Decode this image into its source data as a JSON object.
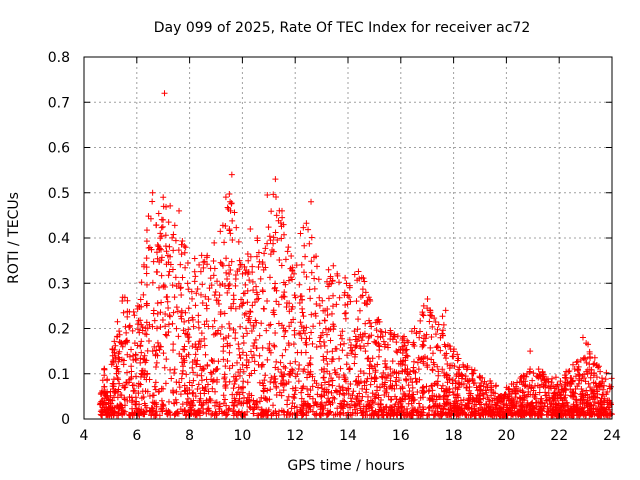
{
  "chart_data": {
    "type": "scatter",
    "title": "Day 099 of 2025, Rate Of TEC Index for receiver ac72",
    "xlabel": "GPS time / hours",
    "ylabel": "ROTI / TECUs",
    "xlim": [
      4,
      24
    ],
    "ylim": [
      0,
      0.8
    ],
    "xticks": [
      4,
      6,
      8,
      10,
      12,
      14,
      16,
      18,
      20,
      22,
      24
    ],
    "yticks": [
      0,
      0.1,
      0.2,
      0.3,
      0.4,
      0.5,
      0.6,
      0.7,
      0.8
    ],
    "ytick_labels": [
      "0",
      "0.1",
      "0.2",
      "0.3",
      "0.4",
      "0.5",
      "0.6",
      "0.7",
      "0.8"
    ],
    "grid": true,
    "marker": "plus",
    "color": "#ff0000",
    "envelope": {
      "x": [
        4.6,
        5.0,
        5.5,
        6.0,
        6.5,
        7.0,
        7.5,
        8.0,
        8.5,
        9.0,
        9.5,
        10.0,
        10.5,
        11.0,
        11.5,
        12.0,
        12.5,
        13.0,
        13.5,
        14.0,
        14.5,
        15.0,
        15.5,
        16.0,
        16.5,
        17.0,
        17.5,
        18.0,
        18.5,
        19.0,
        19.5,
        20.0,
        20.5,
        21.0,
        21.5,
        22.0,
        22.5,
        23.0,
        23.5,
        24.0
      ],
      "y": [
        0.11,
        0.14,
        0.28,
        0.24,
        0.5,
        0.49,
        0.46,
        0.35,
        0.37,
        0.4,
        0.54,
        0.34,
        0.42,
        0.53,
        0.46,
        0.35,
        0.47,
        0.3,
        0.36,
        0.32,
        0.33,
        0.23,
        0.2,
        0.19,
        0.2,
        0.27,
        0.24,
        0.16,
        0.12,
        0.1,
        0.08,
        0.07,
        0.09,
        0.12,
        0.1,
        0.09,
        0.12,
        0.18,
        0.12,
        0.1
      ]
    },
    "outliers": [
      {
        "x": 7.05,
        "y": 0.72
      },
      {
        "x": 9.6,
        "y": 0.54
      },
      {
        "x": 11.25,
        "y": 0.53
      },
      {
        "x": 12.6,
        "y": 0.48
      },
      {
        "x": 6.6,
        "y": 0.5
      },
      {
        "x": 7.0,
        "y": 0.49
      },
      {
        "x": 7.6,
        "y": 0.46
      },
      {
        "x": 9.55,
        "y": 0.46
      },
      {
        "x": 11.5,
        "y": 0.46
      },
      {
        "x": 10.3,
        "y": 0.42
      },
      {
        "x": 12.2,
        "y": 0.41
      },
      {
        "x": 22.9,
        "y": 0.18
      },
      {
        "x": 17.7,
        "y": 0.24
      },
      {
        "x": 20.9,
        "y": 0.15
      }
    ]
  }
}
